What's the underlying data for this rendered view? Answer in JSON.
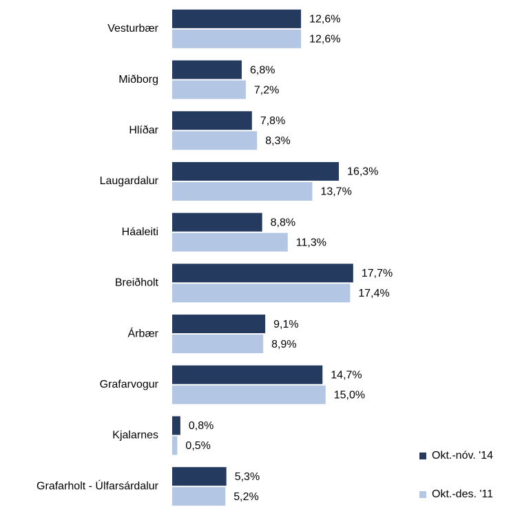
{
  "chart_data": {
    "type": "hbar",
    "categories": [
      "Vesturbær",
      "Miðborg",
      "Hlíðar",
      "Laugardalur",
      "Háaleiti",
      "Breiðholt",
      "Árbær",
      "Grafarvogur",
      "Kjalarnes",
      "Grafarholt - Úlfarsárdalur"
    ],
    "series": [
      {
        "name": "Okt.-nóv. '14",
        "color": "#243a5e",
        "values": [
          12.6,
          6.8,
          7.8,
          16.3,
          8.8,
          17.7,
          9.1,
          14.7,
          0.8,
          5.3
        ],
        "value_labels": [
          "12,6%",
          "6,8%",
          "7,8%",
          "16,3%",
          "8,8%",
          "17,7%",
          "9,1%",
          "14,7%",
          "0,8%",
          "5,3%"
        ]
      },
      {
        "name": "Okt.-des. '11",
        "color": "#b3c6e3",
        "values": [
          12.6,
          7.2,
          8.3,
          13.7,
          11.3,
          17.4,
          8.9,
          15.0,
          0.5,
          5.2
        ],
        "value_labels": [
          "12,6%",
          "7,2%",
          "8,3%",
          "13,7%",
          "11,3%",
          "17,4%",
          "8,9%",
          "15,0%",
          "0,5%",
          "5,2%"
        ]
      }
    ],
    "xlim": [
      0,
      20
    ],
    "legend": "bottom-right"
  }
}
